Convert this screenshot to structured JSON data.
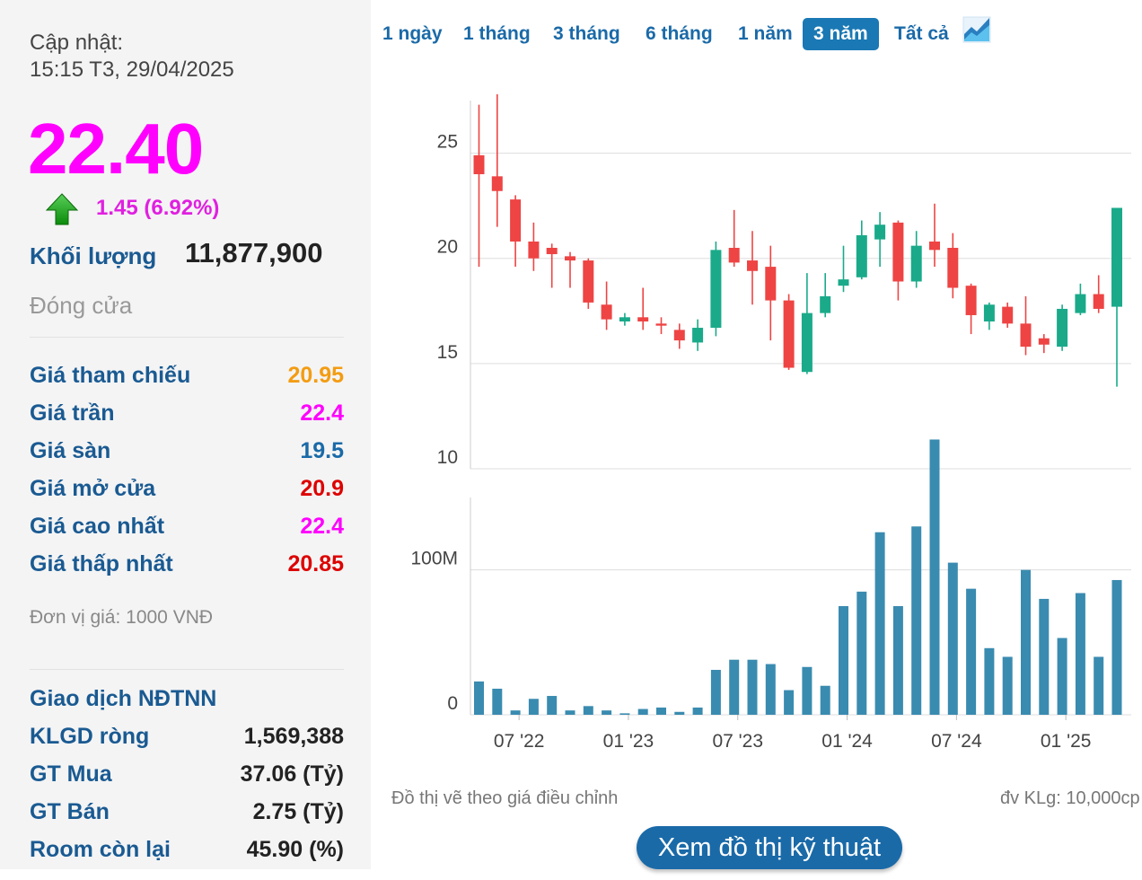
{
  "sidebar": {
    "updated_label": "Cập nhật:",
    "updated_time": "15:15 T3, 29/04/2025",
    "price": "22.40",
    "change": "1.45 (6.92%)",
    "volume_label": "Khối lượng",
    "volume_value": "11,877,900",
    "status": "Đóng cửa",
    "stats": [
      {
        "label": "Giá tham chiếu",
        "value": "20.95",
        "color": "#f39c12"
      },
      {
        "label": "Giá trần",
        "value": "22.4",
        "color": "#ff00ff"
      },
      {
        "label": "Giá sàn",
        "value": "19.5",
        "color": "#1a6aa8"
      },
      {
        "label": "Giá mở cửa",
        "value": "20.9",
        "color": "#dd0000"
      },
      {
        "label": "Giá cao nhất",
        "value": "22.4",
        "color": "#ff00ff"
      },
      {
        "label": "Giá thấp nhất",
        "value": "20.85",
        "color": "#dd0000"
      }
    ],
    "unit_note": "Đơn vị giá: 1000 VNĐ",
    "ndtnn": {
      "title": "Giao dịch NĐTNN",
      "rows": [
        {
          "label": "KLGD ròng",
          "value": "1,569,388"
        },
        {
          "label": "GT Mua",
          "value": "37.06 (Tỷ)"
        },
        {
          "label": "GT Bán",
          "value": "2.75 (Tỷ)"
        },
        {
          "label": "Room còn lại",
          "value": "45.90 (%)"
        }
      ]
    }
  },
  "tabs": [
    "1 ngày",
    "1 tháng",
    "3 tháng",
    "6 tháng",
    "1 năm",
    "3 năm",
    "Tất cả"
  ],
  "active_tab": "3 năm",
  "colors": {
    "up": "#1aaa8a",
    "down": "#ee4444",
    "volume": "#3a8bb0",
    "accent": "#1a6aa8"
  },
  "chart_data": {
    "type": "candlestick",
    "price_ylim": [
      10,
      27.5
    ],
    "price_ticks": [
      10,
      15,
      20,
      25
    ],
    "volume_ylim": [
      0,
      150
    ],
    "volume_tick_labels": [
      {
        "value": 0,
        "label": "0"
      },
      {
        "value": 100,
        "label": "100M"
      }
    ],
    "x_tick_labels": [
      {
        "index": 2.2,
        "label": "07 '22"
      },
      {
        "index": 8.2,
        "label": "01 '23"
      },
      {
        "index": 14.2,
        "label": "07 '23"
      },
      {
        "index": 20.2,
        "label": "01 '24"
      },
      {
        "index": 26.2,
        "label": "07 '24"
      },
      {
        "index": 32.2,
        "label": "01 '25"
      }
    ],
    "candles": [
      {
        "o": 24.9,
        "h": 27.3,
        "l": 19.6,
        "c": 24.0,
        "v": 23
      },
      {
        "o": 23.9,
        "h": 27.8,
        "l": 21.5,
        "c": 23.2,
        "v": 18
      },
      {
        "o": 22.8,
        "h": 23.0,
        "l": 19.6,
        "c": 20.8,
        "v": 3
      },
      {
        "o": 20.8,
        "h": 21.7,
        "l": 19.4,
        "c": 20.0,
        "v": 11
      },
      {
        "o": 20.5,
        "h": 20.7,
        "l": 18.6,
        "c": 20.2,
        "v": 13
      },
      {
        "o": 20.1,
        "h": 20.3,
        "l": 18.6,
        "c": 19.9,
        "v": 3
      },
      {
        "o": 19.9,
        "h": 20.0,
        "l": 17.6,
        "c": 17.9,
        "v": 6
      },
      {
        "o": 17.8,
        "h": 18.9,
        "l": 16.6,
        "c": 17.1,
        "v": 3
      },
      {
        "o": 17.0,
        "h": 17.4,
        "l": 16.8,
        "c": 17.2,
        "v": 1
      },
      {
        "o": 17.2,
        "h": 18.6,
        "l": 16.6,
        "c": 17.0,
        "v": 4
      },
      {
        "o": 16.9,
        "h": 17.2,
        "l": 16.4,
        "c": 16.8,
        "v": 5
      },
      {
        "o": 16.6,
        "h": 16.9,
        "l": 15.7,
        "c": 16.1,
        "v": 2
      },
      {
        "o": 16.0,
        "h": 17.1,
        "l": 15.6,
        "c": 16.7,
        "v": 5
      },
      {
        "o": 16.7,
        "h": 20.8,
        "l": 16.3,
        "c": 20.4,
        "v": 31
      },
      {
        "o": 20.5,
        "h": 22.3,
        "l": 19.6,
        "c": 19.8,
        "v": 38
      },
      {
        "o": 19.9,
        "h": 21.3,
        "l": 17.8,
        "c": 19.4,
        "v": 38
      },
      {
        "o": 19.6,
        "h": 20.6,
        "l": 16.1,
        "c": 18.0,
        "v": 35
      },
      {
        "o": 18.0,
        "h": 18.3,
        "l": 14.7,
        "c": 14.8,
        "v": 17
      },
      {
        "o": 14.6,
        "h": 19.3,
        "l": 14.5,
        "c": 17.4,
        "v": 33
      },
      {
        "o": 17.4,
        "h": 19.3,
        "l": 17.2,
        "c": 18.2,
        "v": 20
      },
      {
        "o": 18.7,
        "h": 20.6,
        "l": 18.4,
        "c": 19.0,
        "v": 75
      },
      {
        "o": 19.1,
        "h": 21.8,
        "l": 19.0,
        "c": 21.1,
        "v": 85
      },
      {
        "o": 20.9,
        "h": 22.2,
        "l": 19.6,
        "c": 21.6,
        "v": 126
      },
      {
        "o": 21.7,
        "h": 21.8,
        "l": 18.0,
        "c": 18.9,
        "v": 75
      },
      {
        "o": 18.9,
        "h": 21.3,
        "l": 18.6,
        "c": 20.6,
        "v": 130
      },
      {
        "o": 20.8,
        "h": 22.6,
        "l": 19.6,
        "c": 20.4,
        "v": 190
      },
      {
        "o": 20.5,
        "h": 21.2,
        "l": 18.1,
        "c": 18.6,
        "v": 105
      },
      {
        "o": 18.7,
        "h": 18.8,
        "l": 16.4,
        "c": 17.3,
        "v": 87
      },
      {
        "o": 17.0,
        "h": 17.9,
        "l": 16.6,
        "c": 17.8,
        "v": 46
      },
      {
        "o": 17.7,
        "h": 17.9,
        "l": 16.7,
        "c": 16.9,
        "v": 40
      },
      {
        "o": 16.9,
        "h": 18.2,
        "l": 15.4,
        "c": 15.8,
        "v": 100
      },
      {
        "o": 16.2,
        "h": 16.4,
        "l": 15.5,
        "c": 15.9,
        "v": 80
      },
      {
        "o": 15.8,
        "h": 17.8,
        "l": 15.6,
        "c": 17.6,
        "v": 53
      },
      {
        "o": 17.4,
        "h": 18.8,
        "l": 17.3,
        "c": 18.3,
        "v": 84
      },
      {
        "o": 18.3,
        "h": 19.2,
        "l": 17.4,
        "c": 17.6,
        "v": 40
      },
      {
        "o": 17.7,
        "h": 22.4,
        "l": 13.9,
        "c": 22.4,
        "v": 93
      }
    ]
  }
}
